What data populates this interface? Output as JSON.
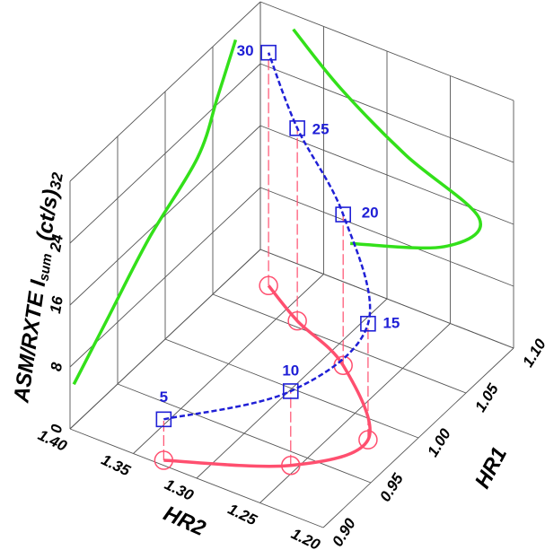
{
  "chart_data": {
    "type": "line3d",
    "xlabel": "HR2",
    "ylabel": "HR1",
    "zlabel": "ASM/RXTE I",
    "zlabel_sub": "sum",
    "zlabel_unit": "(ct/s)",
    "xlim": [
      1.4,
      1.2
    ],
    "ylim": [
      0.9,
      1.1
    ],
    "zlim": [
      0,
      32
    ],
    "xticks": [
      {
        "value": 1.4,
        "label": "1.40"
      },
      {
        "value": 1.35,
        "label": "1.35"
      },
      {
        "value": 1.3,
        "label": "1.30"
      },
      {
        "value": 1.25,
        "label": "1.25"
      },
      {
        "value": 1.2,
        "label": "1.20"
      }
    ],
    "yticks": [
      {
        "value": 0.9,
        "label": "0.90"
      },
      {
        "value": 0.95,
        "label": "0.95"
      },
      {
        "value": 1.0,
        "label": "1.00"
      },
      {
        "value": 1.05,
        "label": "1.05"
      },
      {
        "value": 1.1,
        "label": "1.10"
      }
    ],
    "zticks": [
      0,
      8,
      16,
      24,
      32
    ],
    "grid": true,
    "series": [
      {
        "color": "#1f1fd6",
        "floor_color": "#ff4f6f",
        "projection_color": "#33e01a",
        "point_labels": [
          5,
          10,
          15,
          20,
          25,
          30
        ],
        "x": [
          1.329,
          1.255,
          1.227,
          1.285,
          1.337,
          1.374
        ],
        "y": [
          0.904,
          0.939,
          0.983,
          1.034,
          1.055,
          1.074
        ],
        "z": [
          5.3,
          9.6,
          15.0,
          19.5,
          24.9,
          30.1
        ]
      }
    ]
  }
}
